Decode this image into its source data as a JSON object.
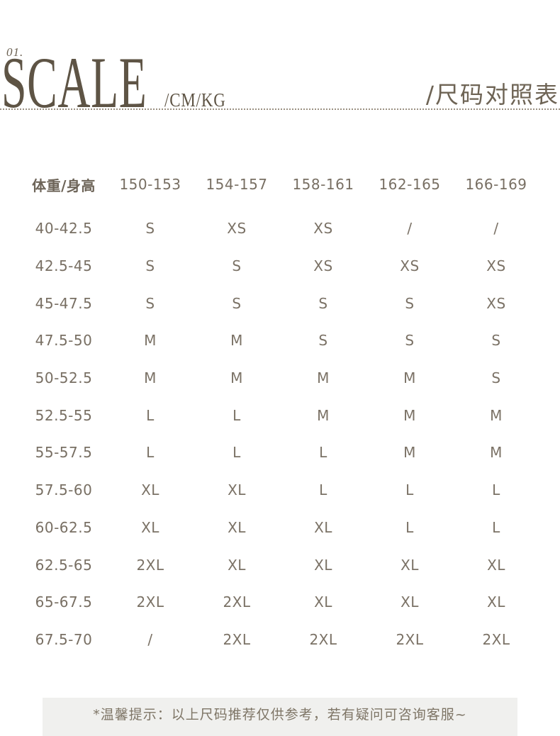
{
  "page": {
    "index_label": "01.",
    "brand_title": "SCALE",
    "brand_units": "/CM/KG",
    "section_title": "/尺码对照表"
  },
  "chart_data": {
    "type": "table",
    "title": "尺码对照表",
    "corner_header": "体重/身高",
    "columns": [
      "150-153",
      "154-157",
      "158-161",
      "162-165",
      "166-169"
    ],
    "rows": [
      {
        "label": "40-42.5",
        "sizes": [
          "S",
          "XS",
          "XS",
          "/",
          "/"
        ]
      },
      {
        "label": "42.5-45",
        "sizes": [
          "S",
          "S",
          "XS",
          "XS",
          "XS"
        ]
      },
      {
        "label": "45-47.5",
        "sizes": [
          "S",
          "S",
          "S",
          "S",
          "XS"
        ]
      },
      {
        "label": "47.5-50",
        "sizes": [
          "M",
          "M",
          "S",
          "S",
          "S"
        ]
      },
      {
        "label": "50-52.5",
        "sizes": [
          "M",
          "M",
          "M",
          "M",
          "S"
        ]
      },
      {
        "label": "52.5-55",
        "sizes": [
          "L",
          "L",
          "M",
          "M",
          "M"
        ]
      },
      {
        "label": "55-57.5",
        "sizes": [
          "L",
          "L",
          "L",
          "M",
          "M"
        ]
      },
      {
        "label": "57.5-60",
        "sizes": [
          "XL",
          "XL",
          "L",
          "L",
          "L"
        ]
      },
      {
        "label": "60-62.5",
        "sizes": [
          "XL",
          "XL",
          "XL",
          "L",
          "L"
        ]
      },
      {
        "label": "62.5-65",
        "sizes": [
          "2XL",
          "XL",
          "XL",
          "XL",
          "XL"
        ]
      },
      {
        "label": "65-67.5",
        "sizes": [
          "2XL",
          "2XL",
          "XL",
          "XL",
          "XL"
        ]
      },
      {
        "label": "67.5-70",
        "sizes": [
          "/",
          "2XL",
          "2XL",
          "2XL",
          "2XL"
        ]
      }
    ]
  },
  "footer": {
    "note": "*温馨提示：以上尺码推荐仅供参考，若有疑问可咨询客服~"
  },
  "colors": {
    "brand_text": "#5e5445",
    "section_title_text": "#6e6455",
    "table_text": "#7b7266",
    "divider": "#9a9081",
    "footer_bg": "#f0f0ee",
    "footer_text": "#7e7566"
  }
}
